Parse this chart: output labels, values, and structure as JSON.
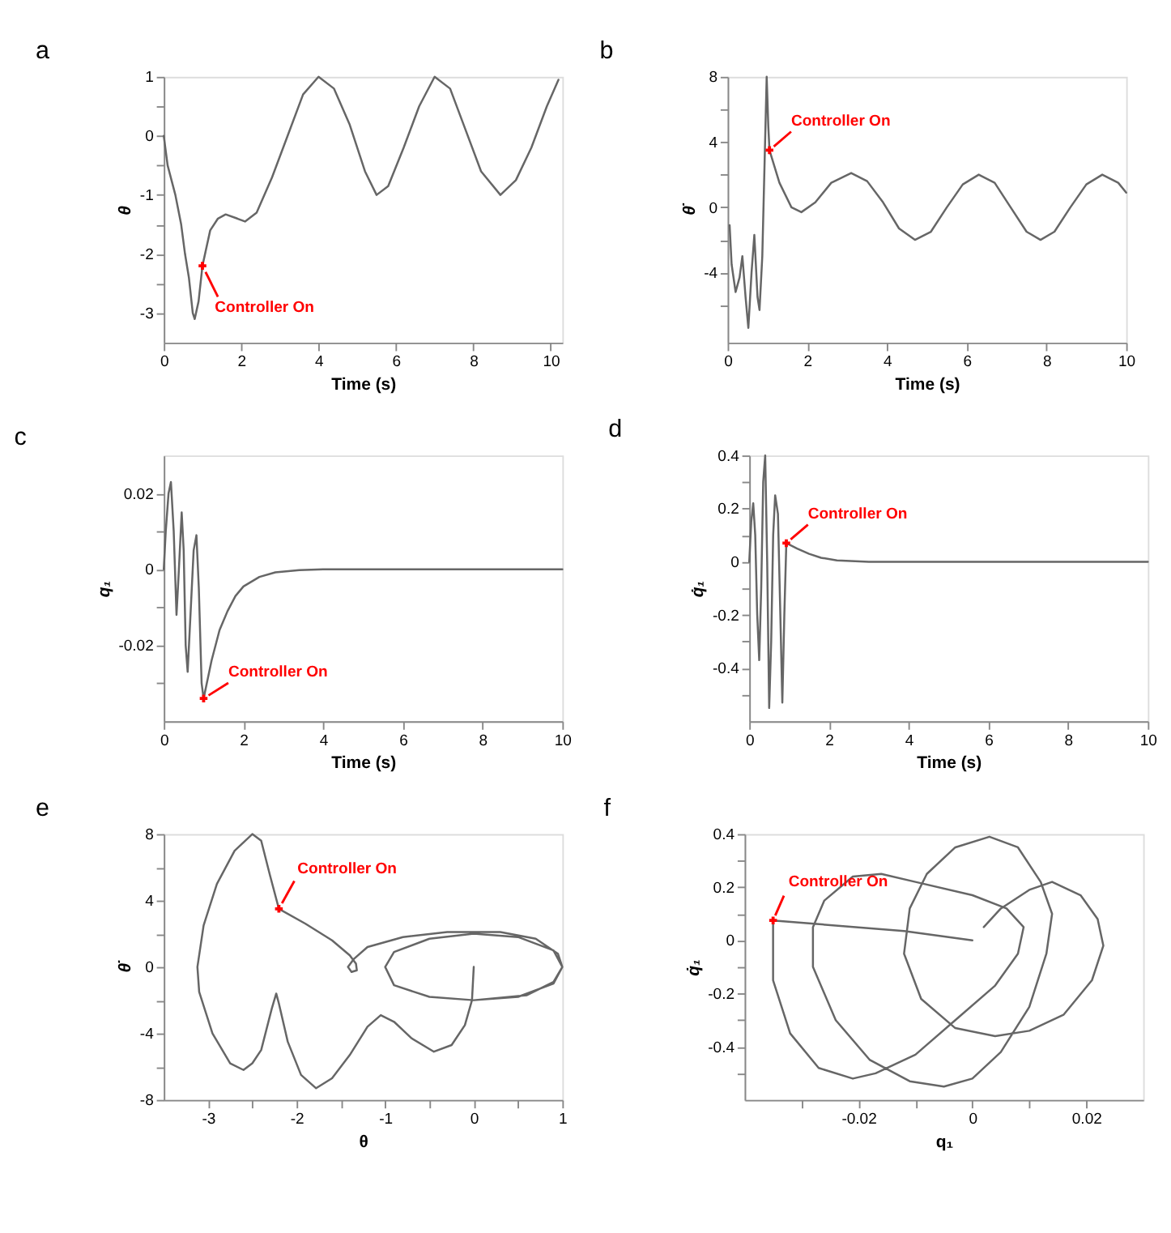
{
  "chart_data": [
    {
      "type": "line",
      "title": "a",
      "xlabel": "Time (s)",
      "ylabel": "θ",
      "xlim": [
        0,
        10.3
      ],
      "ylim": [
        -3.5,
        1
      ],
      "xticks": [
        0,
        2,
        4,
        6,
        8,
        10
      ],
      "yticks": [
        -3,
        {
          "value": -2.5,
          "label": null
        },
        -2,
        {
          "value": -1.5,
          "label": null
        },
        -1,
        {
          "value": -0.5,
          "label": null
        },
        0,
        {
          "value": 0.5,
          "label": null
        },
        1
      ],
      "series": [
        {
          "color": "#666666",
          "x": [
            0,
            0.1,
            0.3,
            0.45,
            0.55,
            0.65,
            0.75,
            0.8,
            0.9,
            1.0,
            1.2,
            1.4,
            1.6,
            1.9,
            2.1,
            2.4,
            2.8,
            3.2,
            3.6,
            4.0,
            4.4,
            4.8,
            5.2,
            5.5,
            5.8,
            6.2,
            6.6,
            7.0,
            7.4,
            7.8,
            8.2,
            8.7,
            9.1,
            9.5,
            9.9,
            10.2
          ],
          "values": [
            0,
            -0.5,
            -1.0,
            -1.5,
            -2.0,
            -2.4,
            -3.0,
            -3.1,
            -2.8,
            -2.2,
            -1.6,
            -1.4,
            -1.33,
            -1.4,
            -1.45,
            -1.3,
            -0.7,
            0,
            0.7,
            1.0,
            0.8,
            0.2,
            -0.6,
            -1.0,
            -0.85,
            -0.2,
            0.5,
            1.0,
            0.8,
            0.1,
            -0.6,
            -1.0,
            -0.75,
            -0.2,
            0.5,
            0.95
          ]
        }
      ],
      "annotations": [
        {
          "text": "Controller On",
          "x": 1.0,
          "y": -2.2
        }
      ]
    },
    {
      "type": "line",
      "title": "b",
      "xlabel": "Time (s)",
      "ylabel": "θ̇",
      "xlim": [
        0,
        10
      ],
      "ylim": [
        -8.3,
        8
      ],
      "xticks": [
        0,
        2,
        4,
        6,
        8,
        10
      ],
      "yticks": [
        {
          "value": -6,
          "label": null
        },
        -4,
        {
          "value": -2,
          "label": null
        },
        0,
        {
          "value": 2,
          "label": null
        },
        4,
        {
          "value": 6,
          "label": null
        },
        8
      ],
      "series": [
        {
          "color": "#666666",
          "x": [
            0.05,
            0.1,
            0.2,
            0.3,
            0.37,
            0.45,
            0.52,
            0.6,
            0.67,
            0.75,
            0.8,
            0.87,
            0.93,
            0.98,
            1.02,
            1.05,
            1.3,
            1.6,
            1.85,
            2.2,
            2.6,
            3.1,
            3.5,
            3.9,
            4.3,
            4.7,
            5.1,
            5.5,
            5.9,
            6.3,
            6.7,
            7.1,
            7.5,
            7.85,
            8.2,
            8.6,
            9.0,
            9.4,
            9.8,
            10.0
          ],
          "values": [
            -1.1,
            -3.5,
            -5.2,
            -4.3,
            -3.0,
            -5.5,
            -7.4,
            -4,
            -1.7,
            -5.5,
            -6.3,
            -3,
            3,
            8,
            5,
            3.5,
            1.5,
            0.0,
            -0.3,
            0.3,
            1.5,
            2.1,
            1.6,
            0.3,
            -1.3,
            -2.0,
            -1.5,
            0,
            1.4,
            2.0,
            1.5,
            0,
            -1.5,
            -2.0,
            -1.5,
            0,
            1.4,
            2.0,
            1.5,
            0.9
          ]
        }
      ],
      "annotations": [
        {
          "text": "Controller On",
          "x": 1.05,
          "y": 3.5
        }
      ]
    },
    {
      "type": "line",
      "title": "c",
      "xlabel": "Time (s)",
      "ylabel": "q₁",
      "xlim": [
        0,
        10
      ],
      "ylim": [
        -0.04,
        0.03
      ],
      "xticks": [
        0,
        2,
        4,
        6,
        8,
        10
      ],
      "yticks": [
        {
          "value": -0.03,
          "label": null
        },
        -0.02,
        {
          "value": -0.01,
          "label": null
        },
        0,
        {
          "value": 0.01,
          "label": null
        },
        0.02
      ],
      "series": [
        {
          "color": "#666666",
          "x": [
            0,
            0.05,
            0.12,
            0.18,
            0.25,
            0.32,
            0.38,
            0.45,
            0.5,
            0.55,
            0.6,
            0.68,
            0.75,
            0.82,
            0.88,
            0.95,
            1.0,
            1.2,
            1.4,
            1.6,
            1.8,
            2.0,
            2.4,
            2.8,
            3.4,
            4,
            10
          ],
          "values": [
            0,
            0.01,
            0.02,
            0.023,
            0.01,
            -0.012,
            0,
            0.015,
            0.005,
            -0.02,
            -0.027,
            -0.01,
            0.005,
            0.009,
            -0.005,
            -0.03,
            -0.034,
            -0.024,
            -0.016,
            -0.011,
            -0.007,
            -0.0045,
            -0.002,
            -0.0008,
            -0.0002,
            0,
            0
          ]
        }
      ],
      "annotations": [
        {
          "text": "Controller On",
          "x": 1.0,
          "y": -0.034
        }
      ]
    },
    {
      "type": "line",
      "title": "d",
      "xlabel": "Time (s)",
      "ylabel": "q̇₁",
      "xlim": [
        0,
        10
      ],
      "ylim": [
        -0.6,
        0.4
      ],
      "xticks": [
        0,
        2,
        4,
        6,
        8,
        10
      ],
      "yticks": [
        {
          "value": -0.5,
          "label": null
        },
        -0.4,
        {
          "value": -0.3,
          "label": null
        },
        -0.2,
        {
          "value": -0.1,
          "label": null
        },
        0,
        {
          "value": 0.1,
          "label": null
        },
        0.2,
        {
          "value": 0.3,
          "label": null
        },
        0.4
      ],
      "series": [
        {
          "color": "#666666",
          "x": [
            0,
            0.05,
            0.1,
            0.15,
            0.2,
            0.25,
            0.3,
            0.35,
            0.4,
            0.45,
            0.5,
            0.55,
            0.6,
            0.65,
            0.72,
            0.78,
            0.83,
            0.88,
            0.93,
            1.2,
            1.5,
            1.8,
            2.2,
            3,
            10
          ],
          "values": [
            0,
            0.15,
            0.22,
            0.1,
            -0.2,
            -0.37,
            -0.1,
            0.3,
            0.4,
            0.0,
            -0.55,
            -0.3,
            0.1,
            0.25,
            0.18,
            -0.2,
            -0.53,
            -0.2,
            0.07,
            0.05,
            0.03,
            0.015,
            0.005,
            0,
            0
          ]
        }
      ],
      "annotations": [
        {
          "text": "Controller On",
          "x": 0.93,
          "y": 0.07
        }
      ]
    },
    {
      "type": "line",
      "title": "e",
      "xlabel": "θ",
      "ylabel": "θ̇",
      "xlim": [
        -3.5,
        1
      ],
      "ylim": [
        -8,
        8
      ],
      "xticks": [
        -3,
        {
          "value": -2.5,
          "label": null
        },
        -2,
        {
          "value": -1.5,
          "label": null
        },
        -1,
        {
          "value": -0.5,
          "label": null
        },
        0,
        {
          "value": 0.5,
          "label": null
        },
        1
      ],
      "yticks": [
        -8,
        {
          "value": -6,
          "label": null
        },
        -4,
        {
          "value": -2,
          "label": null
        },
        0,
        {
          "value": 2,
          "label": null
        },
        4,
        {
          "value": 6,
          "label": null
        },
        8
      ],
      "series": [
        {
          "color": "#666666",
          "x": [
            0,
            -0.02,
            -0.1,
            -0.25,
            -0.45,
            -0.7,
            -0.9,
            -1.05,
            -1.2,
            -1.4,
            -1.6,
            -1.78,
            -1.95,
            -2.1,
            -2.2,
            -2.23,
            -2.28,
            -2.4,
            -2.5,
            -2.6,
            -2.75,
            -2.95,
            -3.1,
            -3.12,
            -3.05,
            -2.9,
            -2.7,
            -2.5,
            -2.4,
            -2.3,
            -2.2,
            -1.9,
            -1.6,
            -1.4,
            -1.33,
            -1.32,
            -1.38,
            -1.42,
            -1.35,
            -1.2,
            -0.8,
            -0.3,
            0.3,
            0.7,
            0.95,
            1.0,
            0.9,
            0.6,
            0,
            -0.5,
            -0.9,
            -1.0,
            -0.9,
            -0.5,
            0,
            0.5,
            0.9,
            1.0,
            0.9,
            0.5,
            0
          ],
          "values": [
            0,
            -2,
            -3.5,
            -4.7,
            -5.1,
            -4.3,
            -3.3,
            -2.9,
            -3.6,
            -5.3,
            -6.7,
            -7.3,
            -6.5,
            -4.5,
            -2.2,
            -1.6,
            -2.5,
            -5.0,
            -5.8,
            -6.2,
            -5.8,
            -4.0,
            -1.5,
            0,
            2.5,
            5,
            7,
            8,
            7.6,
            5.5,
            3.5,
            2.6,
            1.6,
            0.7,
            0.2,
            -0.2,
            -0.3,
            0,
            0.5,
            1.2,
            1.8,
            2.1,
            2.1,
            1.7,
            0.8,
            0,
            -0.9,
            -1.7,
            -2.0,
            -1.8,
            -1.1,
            0,
            0.9,
            1.7,
            2.0,
            1.8,
            1.0,
            0,
            -1.0,
            -1.8,
            -2.0
          ]
        }
      ],
      "annotations": [
        {
          "text": "Controller On",
          "x": -2.2,
          "y": 3.5
        }
      ]
    },
    {
      "type": "line",
      "title": "f",
      "xlabel": "q₁",
      "ylabel": "q̇₁",
      "xlim": [
        -0.04,
        0.03
      ],
      "ylim": [
        -0.6,
        0.4
      ],
      "xticks": [
        {
          "value": -0.03,
          "label": null
        },
        -0.02,
        {
          "value": -0.01,
          "label": null
        },
        0,
        {
          "value": 0.01,
          "label": null
        },
        0.02
      ],
      "yticks": [
        {
          "value": -0.5,
          "label": null
        },
        -0.4,
        {
          "value": -0.3,
          "label": null
        },
        -0.2,
        {
          "value": -0.1,
          "label": null
        },
        0,
        {
          "value": 0.1,
          "label": null
        },
        0.2,
        {
          "value": 0.3,
          "label": null
        },
        0.4
      ],
      "series": [
        {
          "color": "#666666",
          "x": [
            0.002,
            0.005,
            0.01,
            0.014,
            0.019,
            0.022,
            0.023,
            0.021,
            0.016,
            0.01,
            0.004,
            -0.003,
            -0.009,
            -0.012,
            -0.011,
            -0.008,
            -0.003,
            0.003,
            0.008,
            0.012,
            0.014,
            0.013,
            0.01,
            0.005,
            0,
            -0.005,
            -0.011,
            -0.018,
            -0.024,
            -0.028,
            -0.028,
            -0.026,
            -0.021,
            -0.016,
            -0.01,
            0,
            0.006,
            0.009,
            0.008,
            0.004,
            -0.003,
            -0.01,
            -0.017,
            -0.021,
            -0.027,
            -0.032,
            -0.035,
            -0.035,
            -0.012,
            0
          ],
          "values": [
            0.05,
            0.12,
            0.19,
            0.22,
            0.17,
            0.08,
            -0.02,
            -0.15,
            -0.28,
            -0.34,
            -0.36,
            -0.33,
            -0.22,
            -0.05,
            0.12,
            0.25,
            0.35,
            0.39,
            0.35,
            0.22,
            0.1,
            -0.05,
            -0.25,
            -0.42,
            -0.52,
            -0.55,
            -0.53,
            -0.45,
            -0.3,
            -0.1,
            0.05,
            0.15,
            0.24,
            0.25,
            0.22,
            0.17,
            0.12,
            0.05,
            -0.05,
            -0.17,
            -0.3,
            -0.43,
            -0.5,
            -0.52,
            -0.48,
            -0.35,
            -0.15,
            0.075,
            0.035,
            0
          ]
        }
      ],
      "annotations": [
        {
          "text": "Controller On",
          "x": -0.035,
          "y": 0.075
        }
      ]
    }
  ]
}
